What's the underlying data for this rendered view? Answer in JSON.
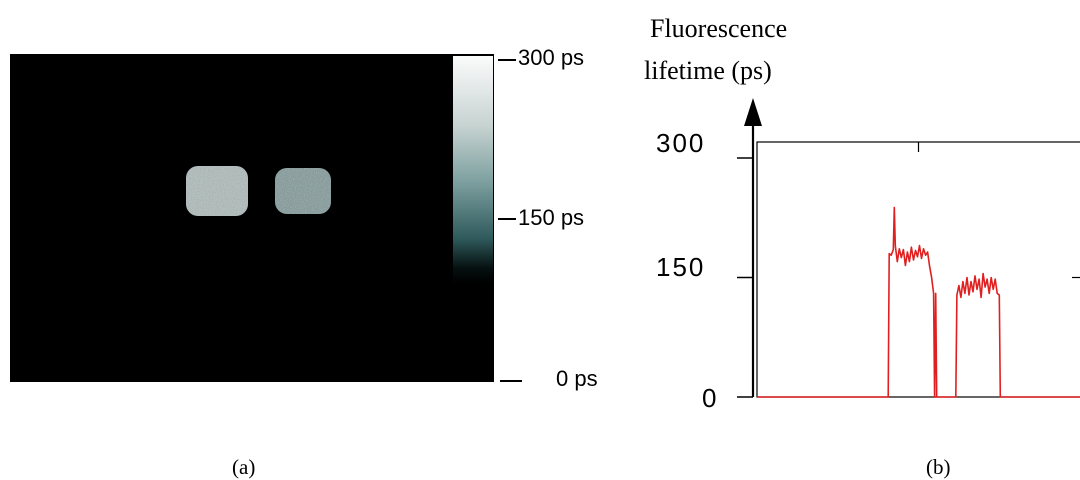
{
  "panel_a": {
    "label": "(a)",
    "colorbar": {
      "ticks": [
        {
          "label": "300 ps",
          "value": 300
        },
        {
          "label": "150 ps",
          "value": 150
        },
        {
          "label": "0 ps",
          "value": 0
        }
      ],
      "colors": [
        "#fbfbfb",
        "#7ea0a0",
        "#2f5a5c",
        "#000000"
      ]
    },
    "image_regions": [
      {
        "shape": "rounded-square",
        "lifetime_ps": 180
      },
      {
        "shape": "rounded-square",
        "lifetime_ps": 140
      }
    ]
  },
  "panel_b": {
    "label": "(b)",
    "ylabel_line1": "Fluorescence",
    "ylabel_line2": "lifetime (ps)",
    "line_color": "#e02020"
  },
  "chart_data": {
    "type": "line",
    "title": "",
    "xlabel": "",
    "ylabel": "Fluorescence lifetime (ps)",
    "yticks": [
      "0",
      "150",
      "300"
    ],
    "ylim": [
      0,
      300
    ],
    "x_range": [
      0,
      320
    ],
    "series": [
      {
        "values": [
          [
            0,
            0
          ],
          [
            130,
            0
          ],
          [
            131,
            180
          ],
          [
            133,
            178
          ],
          [
            135,
            185
          ],
          [
            136,
            238
          ],
          [
            137,
            190
          ],
          [
            139,
            170
          ],
          [
            141,
            186
          ],
          [
            143,
            175
          ],
          [
            145,
            185
          ],
          [
            147,
            165
          ],
          [
            149,
            182
          ],
          [
            151,
            170
          ],
          [
            153,
            188
          ],
          [
            155,
            172
          ],
          [
            157,
            184
          ],
          [
            159,
            176
          ],
          [
            161,
            190
          ],
          [
            163,
            174
          ],
          [
            165,
            186
          ],
          [
            167,
            178
          ],
          [
            169,
            182
          ],
          [
            171,
            164
          ],
          [
            173,
            150
          ],
          [
            175,
            130
          ],
          [
            176,
            0
          ],
          [
            177,
            130
          ],
          [
            178,
            0
          ],
          [
            197,
            0
          ],
          [
            198,
            128
          ],
          [
            200,
            140
          ],
          [
            202,
            125
          ],
          [
            204,
            145
          ],
          [
            206,
            130
          ],
          [
            208,
            150
          ],
          [
            210,
            128
          ],
          [
            212,
            145
          ],
          [
            214,
            132
          ],
          [
            216,
            152
          ],
          [
            218,
            135
          ],
          [
            220,
            148
          ],
          [
            222,
            125
          ],
          [
            224,
            155
          ],
          [
            226,
            138
          ],
          [
            228,
            148
          ],
          [
            230,
            130
          ],
          [
            232,
            150
          ],
          [
            234,
            135
          ],
          [
            236,
            148
          ],
          [
            238,
            130
          ],
          [
            240,
            128
          ],
          [
            241,
            0
          ],
          [
            320,
            0
          ]
        ]
      }
    ]
  }
}
